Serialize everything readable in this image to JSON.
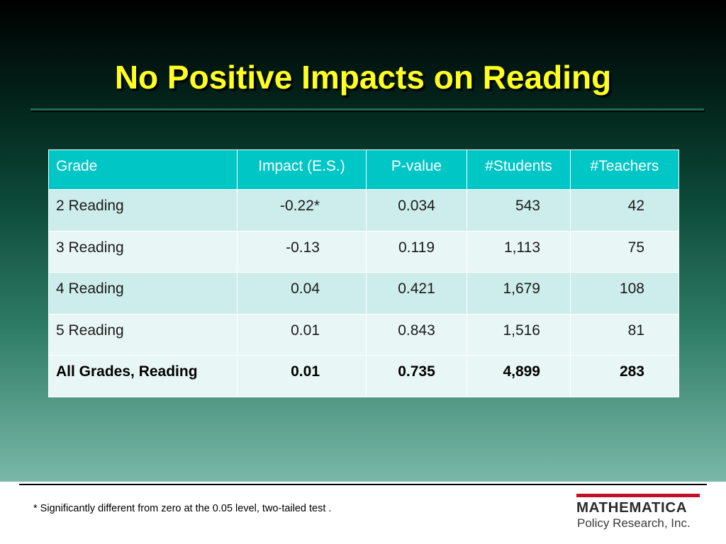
{
  "title": "No Positive Impacts on Reading",
  "table": {
    "headers": [
      "Grade",
      "Impact (E.S.)",
      "P-value",
      "#Students",
      "#Teachers"
    ],
    "rows": [
      [
        "2 Reading",
        "-0.22*",
        "0.034",
        "543",
        "42"
      ],
      [
        "3 Reading",
        "-0.13",
        "0.119",
        "1,113",
        "75"
      ],
      [
        "4 Reading",
        "0.04",
        "0.421",
        "1,679",
        "108"
      ],
      [
        "5 Reading",
        "0.01",
        "0.843",
        "1,516",
        "81"
      ],
      [
        "All Grades, Reading",
        "0.01",
        "0.735",
        "4,899",
        "283"
      ]
    ]
  },
  "footnote": "* Significantly different from zero at the 0.05 level, two-tailed test .",
  "logo": {
    "name": "MATHEMATICA",
    "subtitle": "Policy Research, Inc."
  },
  "colors": {
    "title": "#ffff22",
    "header_bg": "#00c6c6",
    "row_dark": "#cdecec",
    "row_light": "#e9f6f6",
    "logo_bar": "#c0102a"
  }
}
